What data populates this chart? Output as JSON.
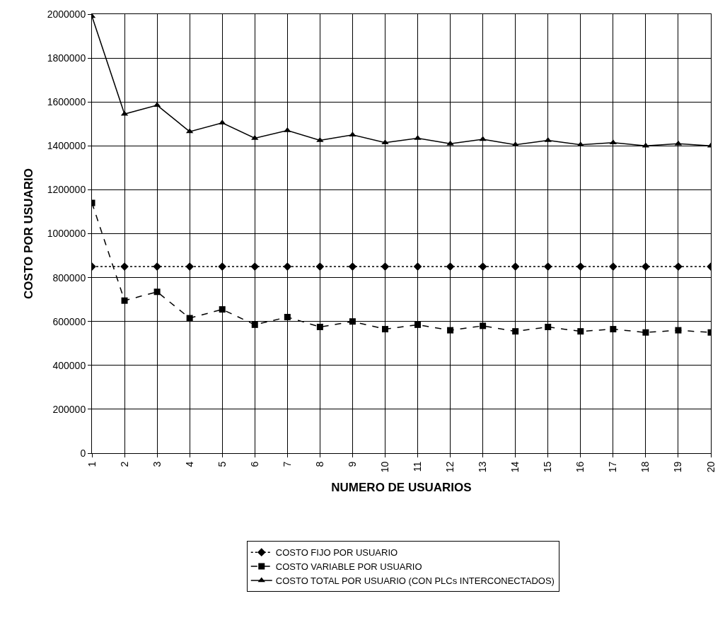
{
  "chart_data": {
    "type": "line",
    "xlabel": "NUMERO DE USUARIOS",
    "ylabel": "COSTO POR USUARIO",
    "categories": [
      "1",
      "2",
      "3",
      "4",
      "5",
      "6",
      "7",
      "8",
      "9",
      "10",
      "11",
      "12",
      "13",
      "14",
      "15",
      "16",
      "17",
      "18",
      "19",
      "20"
    ],
    "series": [
      {
        "name": "COSTO FIJO POR USUARIO",
        "color": "#000000",
        "marker": "diamond",
        "line_style": "dotted",
        "values": [
          850000,
          850000,
          850000,
          850000,
          850000,
          850000,
          850000,
          850000,
          850000,
          850000,
          850000,
          850000,
          850000,
          850000,
          850000,
          850000,
          850000,
          850000,
          850000,
          850000
        ]
      },
      {
        "name": "COSTO VARIABLE POR USUARIO",
        "color": "#000000",
        "marker": "square",
        "line_style": "dashed",
        "values": [
          1140000,
          695000,
          735000,
          615000,
          655000,
          585000,
          620000,
          575000,
          600000,
          565000,
          585000,
          560000,
          580000,
          555000,
          575000,
          555000,
          565000,
          550000,
          560000,
          550000
        ]
      },
      {
        "name": "COSTO TOTAL POR USUARIO (CON PLCs INTERCONECTADOS)",
        "color": "#000000",
        "marker": "triangle",
        "line_style": "solid",
        "values": [
          1990000,
          1545000,
          1585000,
          1465000,
          1505000,
          1435000,
          1470000,
          1425000,
          1450000,
          1415000,
          1435000,
          1410000,
          1430000,
          1405000,
          1425000,
          1405000,
          1415000,
          1400000,
          1410000,
          1400000
        ]
      }
    ],
    "ylim": [
      0,
      2000000
    ],
    "yticks": [
      0,
      200000,
      400000,
      600000,
      800000,
      1000000,
      1200000,
      1400000,
      1600000,
      1800000,
      2000000
    ],
    "grid": true,
    "legend": "bottom"
  }
}
